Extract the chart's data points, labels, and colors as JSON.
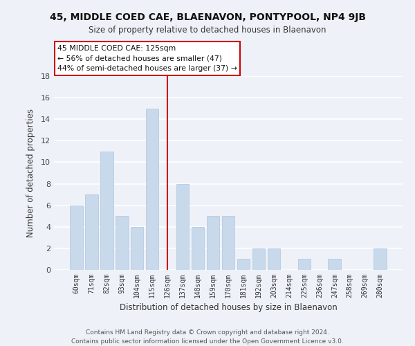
{
  "title": "45, MIDDLE COED CAE, BLAENAVON, PONTYPOOL, NP4 9JB",
  "subtitle": "Size of property relative to detached houses in Blaenavon",
  "xlabel": "Distribution of detached houses by size in Blaenavon",
  "ylabel": "Number of detached properties",
  "categories": [
    "60sqm",
    "71sqm",
    "82sqm",
    "93sqm",
    "104sqm",
    "115sqm",
    "126sqm",
    "137sqm",
    "148sqm",
    "159sqm",
    "170sqm",
    "181sqm",
    "192sqm",
    "203sqm",
    "214sqm",
    "225sqm",
    "236sqm",
    "247sqm",
    "258sqm",
    "269sqm",
    "280sqm"
  ],
  "values": [
    6,
    7,
    11,
    5,
    4,
    15,
    0,
    8,
    4,
    5,
    5,
    1,
    2,
    2,
    0,
    1,
    0,
    1,
    0,
    0,
    2
  ],
  "bar_color": "#c8d9ec",
  "bar_edge_color": "#b0c4de",
  "highlight_index": 6,
  "highlight_line_color": "#cc0000",
  "annotation_title": "45 MIDDLE COED CAE: 125sqm",
  "annotation_line1": "← 56% of detached houses are smaller (47)",
  "annotation_line2": "44% of semi-detached houses are larger (37) →",
  "ylim": [
    0,
    18
  ],
  "yticks": [
    0,
    2,
    4,
    6,
    8,
    10,
    12,
    14,
    16,
    18
  ],
  "bg_color": "#eef2f8",
  "grid_color": "#ffffff",
  "footer_line1": "Contains HM Land Registry data © Crown copyright and database right 2024.",
  "footer_line2": "Contains public sector information licensed under the Open Government Licence v3.0."
}
